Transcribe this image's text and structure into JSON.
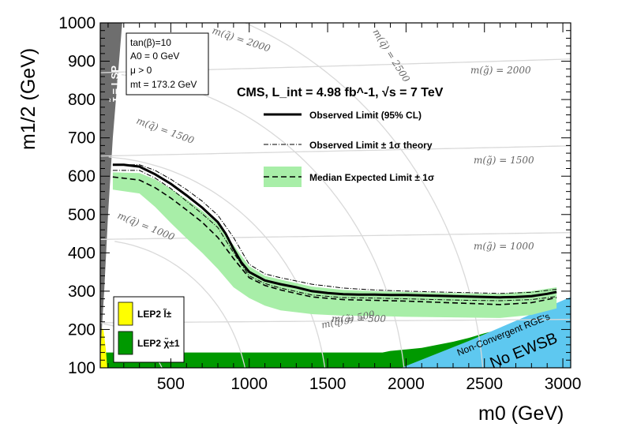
{
  "chart_data": {
    "type": "line",
    "title": "CMS, L_int = 4.98 fb^-1, √s = 7 TeV",
    "xlabel": "m0 (GeV)",
    "ylabel": "m1/2 (GeV)",
    "xlim": [
      50,
      3050
    ],
    "ylim": [
      100,
      1000
    ],
    "x_ticks": [
      500,
      1000,
      1500,
      2000,
      2500,
      3000
    ],
    "y_ticks": [
      100,
      200,
      300,
      400,
      500,
      600,
      700,
      800,
      900,
      1000
    ],
    "parameters": [
      "tan(β)=10",
      "A0 = 0 GeV",
      "μ > 0",
      "mt = 173.2 GeV"
    ],
    "legend": {
      "observed": "Observed Limit (95% CL)",
      "theory": "Observed Limit ± 1σ theory",
      "expected": "Median Expected Limit ± 1σ"
    },
    "series": [
      {
        "name": "Observed Limit (95% CL)",
        "style": "solid",
        "x": [
          130,
          200,
          300,
          400,
          500,
          600,
          700,
          800,
          850,
          900,
          950,
          1000,
          1100,
          1200,
          1300,
          1400,
          1500,
          1600,
          1700,
          1800,
          1900,
          2000,
          2100,
          2200,
          2300,
          2400,
          2500,
          2600,
          2700,
          2800,
          2900,
          2960
        ],
        "y": [
          630,
          630,
          625,
          605,
          580,
          550,
          518,
          480,
          450,
          410,
          375,
          350,
          328,
          318,
          310,
          300,
          295,
          292,
          291,
          291,
          290,
          290,
          289,
          288,
          287,
          286,
          285,
          284,
          285,
          287,
          293,
          298
        ]
      },
      {
        "name": "Observed Limit +1σ theory",
        "style": "dash-dot",
        "x": [
          130,
          300,
          400,
          500,
          600,
          700,
          800,
          900,
          1000,
          1100,
          1200,
          1400,
          1600,
          1800,
          2000,
          2200,
          2400,
          2600,
          2800,
          2960
        ],
        "y": [
          630,
          630,
          615,
          592,
          565,
          535,
          498,
          440,
          370,
          345,
          335,
          318,
          308,
          303,
          300,
          298,
          296,
          294,
          297,
          305
        ]
      },
      {
        "name": "Observed Limit -1σ theory",
        "style": "dash-dot",
        "x": [
          130,
          300,
          400,
          500,
          600,
          700,
          800,
          900,
          1000,
          1100,
          1200,
          1400,
          1600,
          1800,
          2000,
          2200,
          2400,
          2600,
          2800,
          2960
        ],
        "y": [
          615,
          615,
          595,
          568,
          535,
          502,
          466,
          400,
          340,
          320,
          308,
          290,
          283,
          282,
          280,
          278,
          276,
          275,
          278,
          286
        ]
      },
      {
        "name": "Median Expected Limit",
        "style": "dashed",
        "x": [
          130,
          300,
          400,
          500,
          600,
          700,
          800,
          900,
          1000,
          1100,
          1200,
          1400,
          1600,
          1800,
          2000,
          2200,
          2400,
          2600,
          2800,
          2960
        ],
        "y": [
          598,
          590,
          570,
          543,
          512,
          480,
          440,
          385,
          335,
          315,
          303,
          285,
          278,
          276,
          274,
          271,
          268,
          265,
          270,
          283
        ]
      }
    ],
    "band": {
      "name": "Median Expected Limit ± 1σ",
      "x": [
        130,
        300,
        400,
        500,
        600,
        700,
        800,
        900,
        1000,
        1100,
        1200,
        1400,
        1600,
        1800,
        2000,
        2200,
        2400,
        2600,
        2800,
        2960
      ],
      "upper": [
        610,
        608,
        592,
        567,
        540,
        510,
        475,
        420,
        365,
        340,
        330,
        312,
        303,
        300,
        298,
        296,
        294,
        293,
        300,
        310
      ],
      "lower": [
        565,
        555,
        520,
        478,
        438,
        400,
        358,
        310,
        282,
        262,
        250,
        240,
        236,
        235,
        233,
        232,
        231,
        230,
        238,
        255
      ]
    },
    "contours": {
      "squark": [
        {
          "label": "m(q̃) = 500",
          "value": 500
        },
        {
          "label": "m(q̃) = 1000",
          "value": 1000
        },
        {
          "label": "m(q̃) = 1500",
          "value": 1500
        },
        {
          "label": "m(q̃) = 2000",
          "value": 2000
        },
        {
          "label": "m(q̃) = 2500",
          "value": 2500
        }
      ],
      "gluino": [
        {
          "label": "m(g̃) = 500",
          "value": 500
        },
        {
          "label": "m(g̃) = 1000",
          "value": 1000
        },
        {
          "label": "m(g̃) = 1500",
          "value": 1500
        },
        {
          "label": "m(g̃) = 2000",
          "value": 2000
        }
      ]
    },
    "excluded_regions": {
      "stau_lsp": "τ̃ = LSP",
      "lep2_slepton": "LEP2 l̃±",
      "lep2_chargino": "LEP2 χ̃±1",
      "non_convergent": "Non-Convergent RGE's",
      "no_ewsb": "No EWSB"
    },
    "colors": {
      "band": "#a8eea8",
      "lep2_chargino": "#009900",
      "lep2_slepton": "#ffff00",
      "stau_lsp": "#6e6e6e",
      "non_convergent": "#5ec8f0",
      "no_ewsb": "#c8c8c8",
      "contour": "#d9d9d9"
    }
  }
}
